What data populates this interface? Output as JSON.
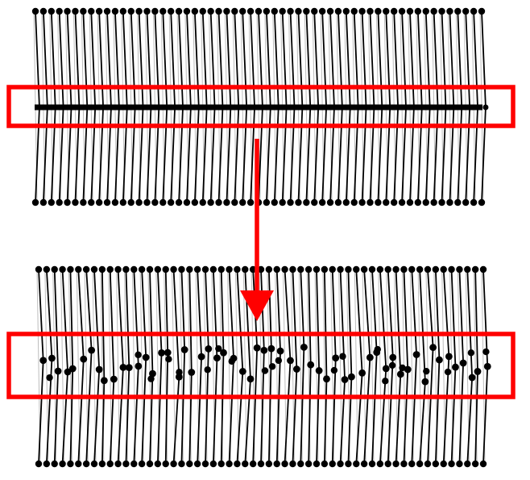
{
  "diagram": {
    "colors": {
      "background": "#ffffff",
      "chain": "#000000",
      "highlight": "#ff0000"
    },
    "top_panel": {
      "state": "ordered",
      "chain_count": 57,
      "center_row": "aligned",
      "highlight": "center-row"
    },
    "bottom_panel": {
      "state": "disordered",
      "chain_count": 57,
      "center_row": "scattered",
      "highlight": "center-row"
    },
    "transition": {
      "from": "top_panel",
      "to": "bottom_panel",
      "icon": "arrow-down-icon"
    }
  }
}
